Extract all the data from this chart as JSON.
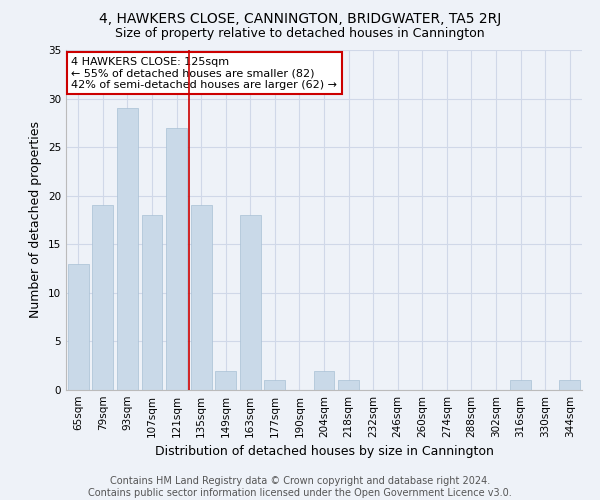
{
  "title": "4, HAWKERS CLOSE, CANNINGTON, BRIDGWATER, TA5 2RJ",
  "subtitle": "Size of property relative to detached houses in Cannington",
  "xlabel": "Distribution of detached houses by size in Cannington",
  "ylabel": "Number of detached properties",
  "categories": [
    "65sqm",
    "79sqm",
    "93sqm",
    "107sqm",
    "121sqm",
    "135sqm",
    "149sqm",
    "163sqm",
    "177sqm",
    "190sqm",
    "204sqm",
    "218sqm",
    "232sqm",
    "246sqm",
    "260sqm",
    "274sqm",
    "288sqm",
    "302sqm",
    "316sqm",
    "330sqm",
    "344sqm"
  ],
  "values": [
    13,
    19,
    29,
    18,
    27,
    19,
    2,
    18,
    1,
    0,
    2,
    1,
    0,
    0,
    0,
    0,
    0,
    0,
    1,
    0,
    1
  ],
  "bar_color": "#c9d9e8",
  "bar_edge_color": "#a8c0d4",
  "vline_x_index": 4,
  "vline_color": "#cc0000",
  "annotation_text": "4 HAWKERS CLOSE: 125sqm\n← 55% of detached houses are smaller (82)\n42% of semi-detached houses are larger (62) →",
  "annotation_box_color": "#ffffff",
  "annotation_box_edge": "#cc0000",
  "ylim": [
    0,
    35
  ],
  "yticks": [
    0,
    5,
    10,
    15,
    20,
    25,
    30,
    35
  ],
  "grid_color": "#d0d8e8",
  "background_color": "#eef2f8",
  "footer": "Contains HM Land Registry data © Crown copyright and database right 2024.\nContains public sector information licensed under the Open Government Licence v3.0.",
  "title_fontsize": 10,
  "subtitle_fontsize": 9,
  "xlabel_fontsize": 9,
  "ylabel_fontsize": 9,
  "tick_fontsize": 7.5,
  "annotation_fontsize": 8,
  "footer_fontsize": 7
}
